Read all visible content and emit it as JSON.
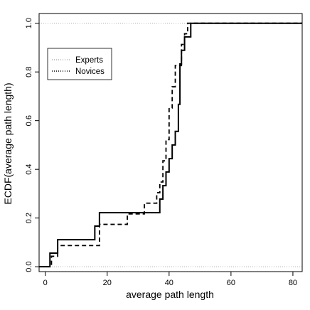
{
  "chart_data": {
    "type": "line",
    "xlabel": "average path length",
    "ylabel": "ECDF(average path length)",
    "xlim": [
      -2,
      83
    ],
    "ylim": [
      -0.02,
      1.04
    ],
    "x_ticks": [
      0,
      20,
      40,
      60,
      80
    ],
    "y_ticks": [
      0.0,
      0.2,
      0.4,
      0.6,
      0.8,
      1.0
    ],
    "x_tick_labels": [
      "0",
      "20",
      "40",
      "60",
      "80"
    ],
    "y_tick_labels": [
      "0.0",
      "0.2",
      "0.4",
      "0.6",
      "0.8",
      "1.0"
    ],
    "reference_lines": [
      0,
      1
    ],
    "grid": false,
    "legend_position": "top-left",
    "legend": [
      "Experts",
      "Novices"
    ],
    "series": [
      {
        "name": "Experts",
        "style": "solid",
        "color": "#000000",
        "step_x": [
          -2,
          1.5,
          4,
          16,
          17.5,
          37,
          38,
          39,
          40,
          41,
          42,
          43,
          43.5,
          44,
          45,
          47,
          83
        ],
        "step_y": [
          0,
          0.056,
          0.111,
          0.167,
          0.222,
          0.278,
          0.333,
          0.389,
          0.444,
          0.5,
          0.556,
          0.667,
          0.833,
          0.889,
          0.944,
          1.0,
          1.0
        ]
      },
      {
        "name": "Novices",
        "style": "dashed",
        "color": "#000000",
        "step_x": [
          -2,
          2,
          4,
          17.5,
          26.5,
          32,
          36,
          37,
          38,
          39,
          40,
          41,
          42,
          44,
          45,
          46,
          83
        ],
        "step_y": [
          0,
          0.043,
          0.087,
          0.174,
          0.217,
          0.261,
          0.304,
          0.348,
          0.435,
          0.522,
          0.652,
          0.739,
          0.826,
          0.913,
          0.957,
          1.0,
          1.0
        ]
      }
    ]
  }
}
